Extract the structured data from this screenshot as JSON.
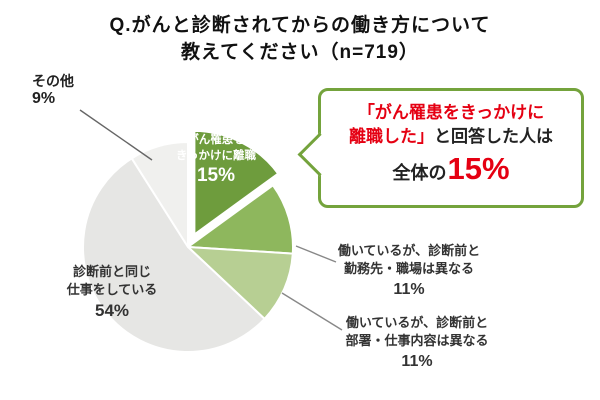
{
  "colors": {
    "accent_green": "#74a33c",
    "emphasis_red": "#e50012",
    "connector_gray": "#777777"
  },
  "title": {
    "line1": "Q.がんと診断されてからの働き方について",
    "line2": "教えてください（n=719）"
  },
  "chart_data": {
    "type": "pie",
    "title": "Q.がんと診断されてからの働き方について教えてください（n=719）",
    "sample_size": "n=719",
    "unit": "%",
    "direction": "clockwise",
    "start_angle_deg": 0,
    "slices": [
      {
        "label": "がん罹患をきっかけに離職",
        "value": 15,
        "color": "#6e9c3d",
        "exploded": true
      },
      {
        "label": "働いているが、診断前と勤務先・職場は異なる",
        "value": 11,
        "color": "#8eb75d",
        "exploded": false
      },
      {
        "label": "働いているが、診断前と部署・仕事内容は異なる",
        "value": 11,
        "color": "#b7cf93",
        "exploded": false
      },
      {
        "label": "診断前と同じ仕事をしている",
        "value": 54,
        "color": "#e6e6e4",
        "exploded": false
      },
      {
        "label": "その他",
        "value": 9,
        "color": "#f0f0ee",
        "exploded": false
      }
    ]
  },
  "labels": {
    "quit": {
      "line1": "がん罹患を",
      "line2": "きっかけに離職",
      "value": "15%"
    },
    "same_job": {
      "line1": "診断前と同じ",
      "line2": "仕事をしている",
      "value": "54%"
    },
    "other": {
      "name": "その他",
      "value": "9%"
    },
    "diff_workplace": {
      "line1": "働いているが、診断前と",
      "line2": "勤務先・職場は異なる",
      "value": "11%"
    },
    "diff_department": {
      "line1": "働いているが、診断前と",
      "line2": "部署・仕事内容は異なる",
      "value": "11%"
    }
  },
  "callout": {
    "line1_red": "「がん罹患をきっかけに",
    "line2_red": "離職した」",
    "line2_dark": "と回答した人は",
    "line3_dark": "全体の",
    "line3_red": "15%"
  }
}
